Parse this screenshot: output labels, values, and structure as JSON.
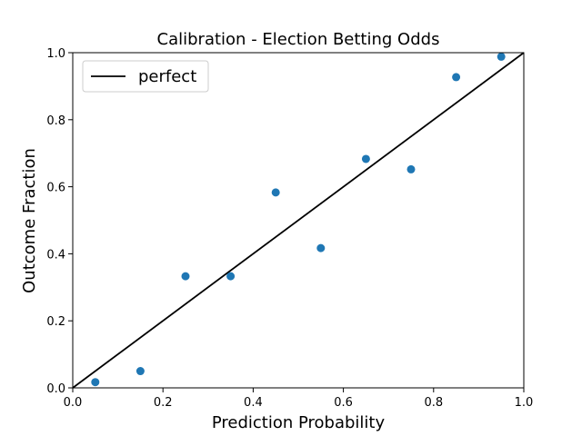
{
  "chart_data": {
    "type": "scatter",
    "title": "Calibration - Election Betting Odds",
    "xlabel": "Prediction Probability",
    "ylabel": "Outcome Fraction",
    "xlim": [
      0.0,
      1.0
    ],
    "ylim": [
      0.0,
      1.0
    ],
    "xticks": [
      "0.0",
      "0.2",
      "0.4",
      "0.6",
      "0.8",
      "1.0"
    ],
    "yticks": [
      "0.0",
      "0.2",
      "0.4",
      "0.6",
      "0.8",
      "1.0"
    ],
    "grid": false,
    "legend": {
      "position": "top-left",
      "entries": [
        "perfect"
      ]
    },
    "series": [
      {
        "name": "perfect",
        "kind": "line",
        "color": "#000000",
        "x": [
          0.0,
          1.0
        ],
        "y": [
          0.0,
          1.0
        ]
      },
      {
        "kind": "scatter",
        "color": "#1f77b4",
        "x": [
          0.05,
          0.15,
          0.25,
          0.35,
          0.45,
          0.55,
          0.65,
          0.75,
          0.85,
          0.95
        ],
        "y": [
          0.017,
          0.05,
          0.333,
          0.333,
          0.583,
          0.417,
          0.683,
          0.652,
          0.927,
          0.988
        ]
      }
    ]
  }
}
